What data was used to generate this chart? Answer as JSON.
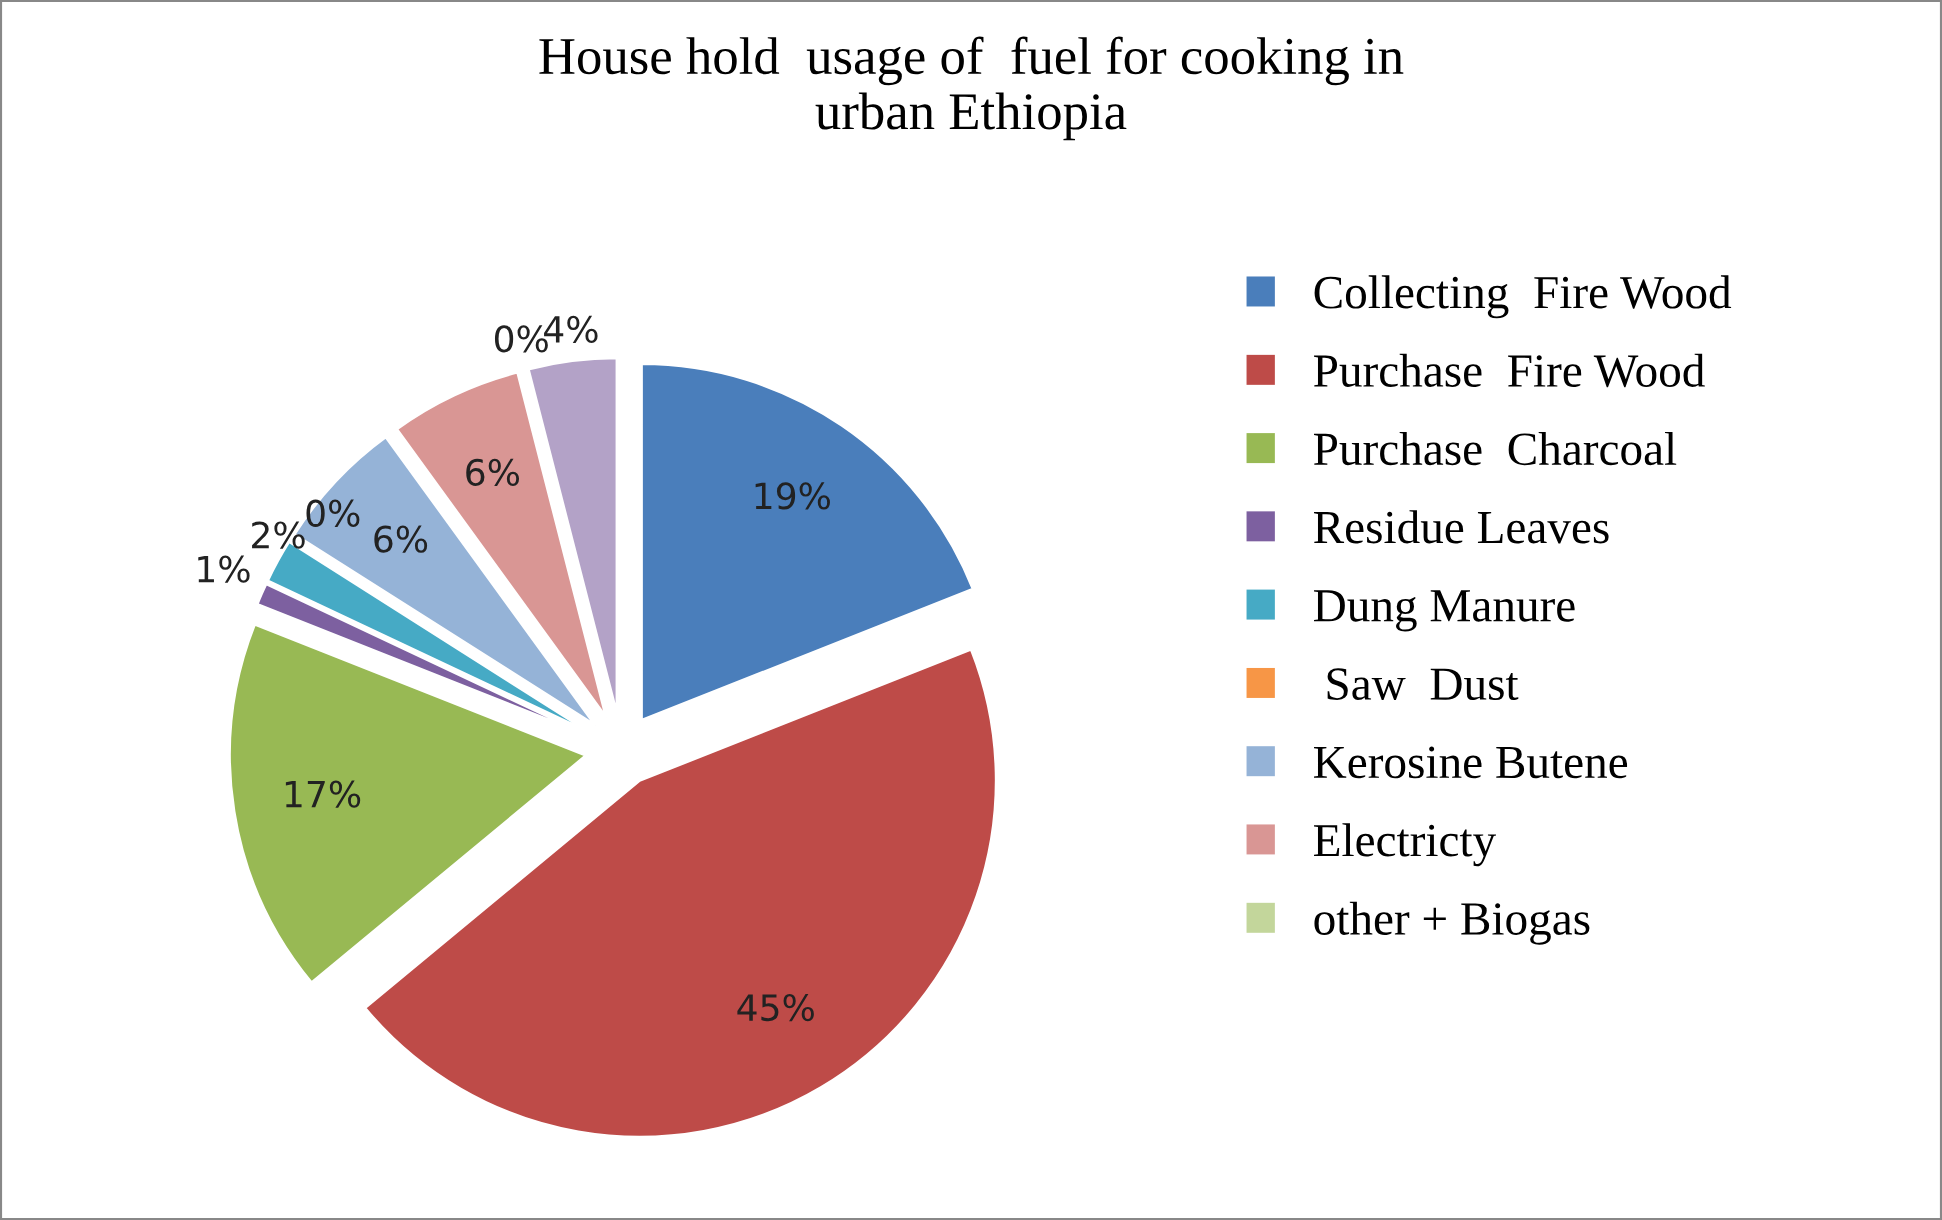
{
  "chart_data": {
    "type": "pie",
    "title": "House hold  usage of  fuel for cooking in\nurban Ethiopia",
    "categories": [
      "Collecting  Fire Wood",
      "Purchase  Fire Wood",
      "Purchase  Charcoal",
      "Residue Leaves",
      "Dung Manure",
      " Saw  Dust",
      "Kerosine Butene",
      "Electricty",
      "other + Biogas",
      null
    ],
    "values": [
      19,
      45,
      17,
      1,
      2,
      0,
      6,
      6,
      0,
      4
    ],
    "value_labels": [
      "19%",
      "45%",
      "17%",
      "1%",
      "2%",
      "0%",
      "6%",
      "6%",
      "0%",
      "4%"
    ],
    "colors": [
      "#4a7ebb",
      "#be4b48",
      "#98b954",
      "#7d60a0",
      "#46aac5",
      "#f79646",
      "#95b3d7",
      "#d99694",
      "#c3d69b",
      "#b3a2c7"
    ],
    "legend": "right"
  }
}
